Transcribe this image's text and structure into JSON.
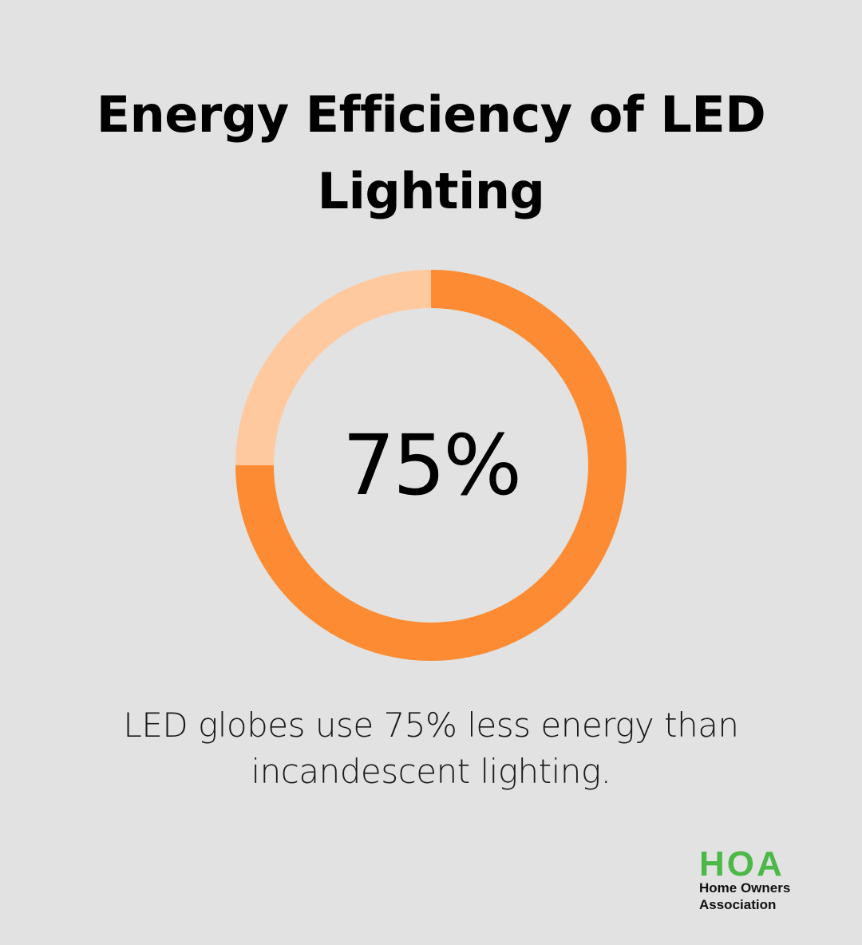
{
  "title": "Energy Efficiency of LED Lighting",
  "chart_data": {
    "type": "pie",
    "variant": "donut",
    "slices": [
      {
        "value": 75,
        "color": "#fd8b33"
      },
      {
        "value": 25,
        "color": "#ffc9a0"
      }
    ],
    "center_label": "75%"
  },
  "caption": {
    "line1": "LED globes use 75% less energy than",
    "line2": "incandescent lighting."
  },
  "logo": {
    "mark": "HOA",
    "line1": "Home Owners",
    "line2": "Association",
    "color": "#4cb848"
  },
  "colors": {
    "background": "#e1e2e1",
    "accent": "#fd8b33",
    "accent_light": "#ffc9a0"
  }
}
